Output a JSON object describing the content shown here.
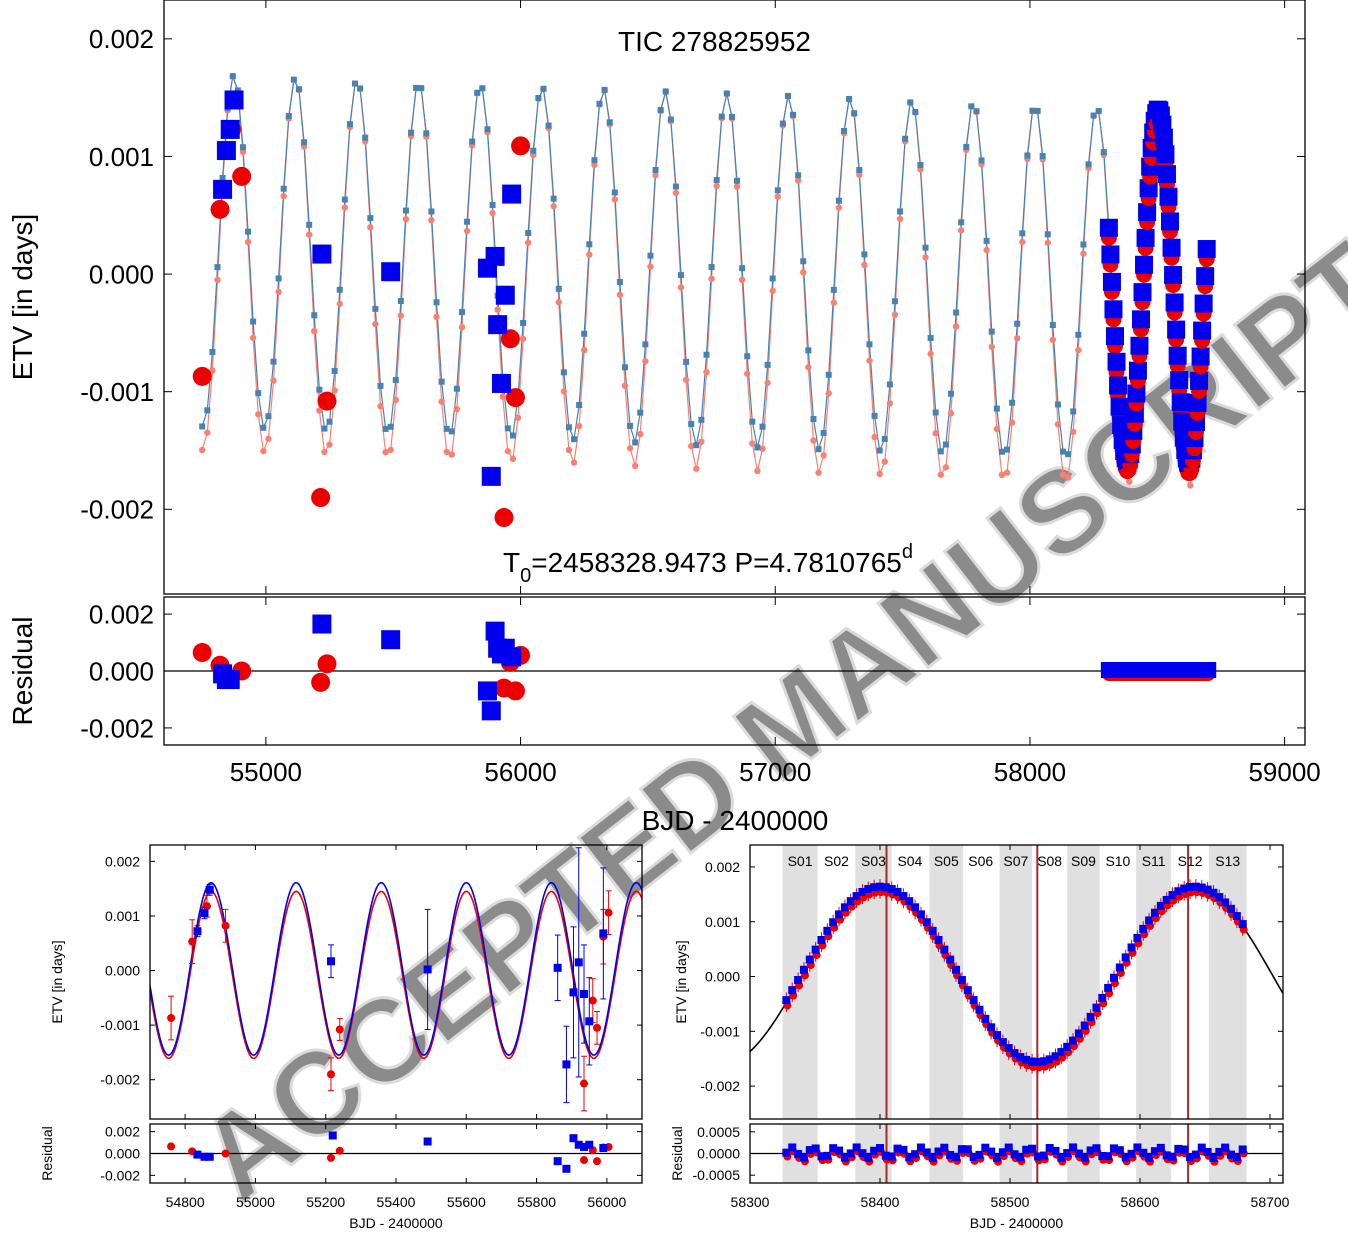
{
  "watermark": "ACCEPTED MANUSCRIPT",
  "colors": {
    "primary_model": "#4682b4",
    "secondary_model": "#fa8072",
    "primary_obs": "#0000ee",
    "secondary_obs": "#ee0000",
    "sector_band": "#e0e0e0",
    "marker_line": "#a52a2a",
    "full_fit_line": "#000000"
  },
  "chart_data": [
    {
      "id": "top",
      "type": "scatter",
      "title": "TIC 278825952",
      "annotation": {
        "base": "T",
        "sub": "0",
        "mid": "=2458328.9473 P=4.7810765",
        "sup": "d"
      },
      "xlabel": "BJD - 2400000",
      "ylabel": "ETV [in days]",
      "xlim": [
        54600,
        59080
      ],
      "ylim": [
        -0.00272,
        0.00233
      ],
      "xticks": [
        55000,
        56000,
        57000,
        58000,
        59000
      ],
      "yticks": [
        -0.002,
        -0.001,
        0.0,
        0.001,
        0.002
      ],
      "ytick_labels": [
        "-0.002",
        "-0.001",
        "0.000",
        "0.001",
        "0.002"
      ],
      "model": {
        "start": 54750,
        "end": 58700,
        "step": 20,
        "amplitude": 0.0015,
        "period": 242,
        "phase_ref": 54874,
        "trend_offset": 0.0002,
        "trend_slope_per_1000d": -8e-05
      },
      "series": [
        {
          "name": "",
          "marker": "circle",
          "color": "#ee0000",
          "x": [
            54750,
            54820,
            54865,
            54905,
            55215,
            55240,
            55935,
            55960,
            55980,
            56000
          ],
          "y": [
            -0.00087,
            0.00055,
            0.00123,
            0.00083,
            -0.0019,
            -0.00108,
            -0.00207,
            -0.00055,
            -0.00105,
            0.00109
          ]
        },
        {
          "name": "",
          "marker": "square",
          "color": "#0000ee",
          "x": [
            54830,
            54845,
            54860,
            54875,
            55220,
            55490,
            55870,
            55885,
            55900,
            55910,
            55925,
            55940,
            55965
          ],
          "y": [
            0.00072,
            0.00105,
            0.00123,
            0.00148,
            0.00017,
            2e-05,
            5e-05,
            -0.00172,
            0.00015,
            -0.00043,
            -0.00093,
            -0.00018,
            0.00068
          ]
        }
      ]
    },
    {
      "id": "top-residual",
      "type": "scatter",
      "ylabel": "Residual",
      "xlim": [
        54600,
        59080
      ],
      "ylim": [
        -0.0026,
        0.0026
      ],
      "yticks": [
        -0.002,
        0.0,
        0.002
      ],
      "ytick_labels": [
        "-0.002",
        "0.000",
        "0.002"
      ],
      "series": [
        {
          "name": "",
          "marker": "circle",
          "color": "#ee0000",
          "x": [
            54750,
            54820,
            54905,
            55215,
            55240,
            55935,
            55960,
            55980,
            56000
          ],
          "y": [
            0.00065,
            0.0002,
            0.0,
            -0.0004,
            0.00025,
            -0.0006,
            0.0003,
            -0.0007,
            0.00055
          ]
        },
        {
          "name": "",
          "marker": "square",
          "color": "#0000ee",
          "x": [
            54830,
            54845,
            54860,
            55220,
            55490,
            55870,
            55885,
            55900,
            55910,
            55925,
            55940,
            55965
          ],
          "y": [
            -0.0001,
            -0.0003,
            -0.0003,
            0.00165,
            0.0011,
            -0.0007,
            -0.0014,
            0.0014,
            0.0008,
            0.0006,
            0.0008,
            0.0005
          ]
        }
      ],
      "dense_band": {
        "x_start": 58310,
        "x_end": 58700,
        "y": 0.0
      }
    },
    {
      "id": "bottom-left",
      "type": "scatter",
      "xlabel": "BJD - 2400000",
      "ylabel": "ETV [in days]",
      "xlim": [
        54700,
        56100
      ],
      "ylim": [
        -0.00272,
        0.0023
      ],
      "xticks": [
        54800,
        55000,
        55200,
        55400,
        55600,
        55800,
        56000
      ],
      "yticks": [
        -0.002,
        -0.001,
        0.0,
        0.001,
        0.002
      ],
      "ytick_labels": [
        "-0.002",
        "-0.001",
        "0.000",
        "0.001",
        "0.002"
      ],
      "model": {
        "amplitude": 0.00158,
        "period": 242,
        "phase_ref": 54874,
        "offset": 0.0
      },
      "series": [
        {
          "name": "",
          "marker": "circle",
          "color": "#ee0000",
          "x": [
            54760,
            54820,
            54862,
            54915,
            55215,
            55240,
            55935,
            55960,
            55972,
            55990,
            56005
          ],
          "y": [
            -0.00087,
            0.00053,
            0.00118,
            0.00082,
            -0.0019,
            -0.00108,
            -0.00207,
            -0.00055,
            -0.00105,
            0.00062,
            0.00106
          ],
          "err": [
            0.0004,
            0.0004,
            0.0002,
            0.0003,
            0.0003,
            0.0002,
            0.0005,
            0.0004,
            0.0003,
            0.0005,
            0.0004
          ]
        },
        {
          "name": "",
          "marker": "square",
          "color": "#0000ee",
          "x": [
            54835,
            54855,
            54870,
            55215,
            55490,
            55860,
            55885,
            55905,
            55920,
            55935,
            55950,
            55990
          ],
          "y": [
            0.00072,
            0.00105,
            0.00148,
            0.00017,
            2e-05,
            5e-05,
            -0.00172,
            -0.0004,
            0.00015,
            -0.00043,
            -0.00093,
            0.00068
          ],
          "err": [
            0.0001,
            0.0001,
            0.0001,
            0.0003,
            0.0011,
            0.0006,
            0.0007,
            0.0012,
            0.0021,
            0.0009,
            0.0008,
            0.0012
          ]
        }
      ]
    },
    {
      "id": "bottom-left-residual",
      "type": "scatter",
      "xlabel": "BJD - 2400000",
      "ylabel": "Residual",
      "xlim": [
        54700,
        56100
      ],
      "ylim": [
        -0.0027,
        0.0027
      ],
      "xticks": [
        54800,
        55000,
        55200,
        55400,
        55600,
        55800,
        56000
      ],
      "yticks": [
        -0.002,
        0.0,
        0.002
      ],
      "ytick_labels": [
        "-0.002",
        "0.000",
        "0.002"
      ],
      "series": [
        {
          "name": "",
          "marker": "circle",
          "color": "#ee0000",
          "x": [
            54760,
            54820,
            54915,
            55215,
            55240,
            55935,
            55960,
            55972,
            55990,
            56005
          ],
          "y": [
            0.00065,
            0.0002,
            0.0,
            -0.0004,
            0.00025,
            -0.0006,
            0.0003,
            -0.0007,
            0.00055,
            0.0006
          ]
        },
        {
          "name": "",
          "marker": "square",
          "color": "#0000ee",
          "x": [
            54835,
            54855,
            54870,
            55220,
            55490,
            55860,
            55885,
            55905,
            55920,
            55935,
            55950,
            55990
          ],
          "y": [
            -0.0001,
            -0.0003,
            -0.0003,
            0.00165,
            0.0011,
            -0.0007,
            -0.0014,
            0.0014,
            0.0008,
            0.0006,
            0.0008,
            0.0005
          ]
        }
      ]
    },
    {
      "id": "bottom-right",
      "type": "scatter",
      "xlabel": "BJD - 2400000",
      "ylabel": "ETV [in days]",
      "xlim": [
        58300,
        58710
      ],
      "ylim": [
        -0.0026,
        0.0024
      ],
      "xticks": [
        58300,
        58400,
        58500,
        58600,
        58700
      ],
      "yticks": [
        -0.002,
        -0.001,
        0.0,
        0.001,
        0.002
      ],
      "ytick_labels": [
        "-0.002",
        "-0.001",
        "0.000",
        "0.001",
        "0.002"
      ],
      "model": {
        "amplitude": 0.0016,
        "period": 242,
        "phase_ref": 58400,
        "offset": 0.0
      },
      "sectors": [
        {
          "label": "S01",
          "x0": 58325,
          "x1": 58352,
          "shaded": true
        },
        {
          "label": "S02",
          "x0": 58353,
          "x1": 58380,
          "shaded": false
        },
        {
          "label": "S03",
          "x0": 58381,
          "x1": 58409,
          "shaded": true
        },
        {
          "label": "S04",
          "x0": 58410,
          "x1": 58436,
          "shaded": false
        },
        {
          "label": "S05",
          "x0": 58438,
          "x1": 58464,
          "shaded": true
        },
        {
          "label": "S06",
          "x0": 58465,
          "x1": 58490,
          "shaded": false
        },
        {
          "label": "S07",
          "x0": 58492,
          "x1": 58517,
          "shaded": true
        },
        {
          "label": "S08",
          "x0": 58518,
          "x1": 58543,
          "shaded": false
        },
        {
          "label": "S09",
          "x0": 58544,
          "x1": 58569,
          "shaded": true
        },
        {
          "label": "S10",
          "x0": 58570,
          "x1": 58596,
          "shaded": false
        },
        {
          "label": "S11",
          "x0": 58597,
          "x1": 58624,
          "shaded": true
        },
        {
          "label": "S12",
          "x0": 58625,
          "x1": 58652,
          "shaded": false
        },
        {
          "label": "S13",
          "x0": 58653,
          "x1": 58682,
          "shaded": true
        }
      ],
      "vlines": [
        58405,
        58521,
        58637
      ],
      "data_range": [
        58328,
        58682
      ]
    },
    {
      "id": "bottom-right-residual",
      "type": "scatter",
      "xlabel": "BJD - 2400000",
      "ylabel": "Residual",
      "xlim": [
        58300,
        58710
      ],
      "ylim": [
        -0.00068,
        0.00068
      ],
      "xticks": [
        58300,
        58400,
        58500,
        58600,
        58700
      ],
      "yticks": [
        -0.0005,
        0.0,
        0.0005
      ],
      "ytick_labels": [
        "-0.0005",
        "0.0000",
        "0.0005"
      ]
    }
  ]
}
